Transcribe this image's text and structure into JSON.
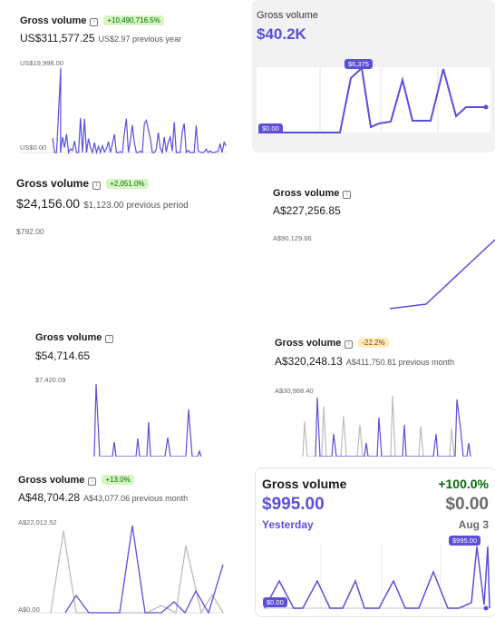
{
  "colors": {
    "series": "#5b4fd9",
    "comparison": "#bdbdbd",
    "gray_bg": "#f2f2f3",
    "green": "#05690d"
  },
  "icons": {
    "info": "info-icon"
  },
  "cards": {
    "c1": {
      "title": "Gross volume",
      "badge": "+10,490,716.5%",
      "amount": "US$311,577.25",
      "prev": "US$2.97 previous year",
      "ymax": "US$19,998.00",
      "ymin": "US$0.00"
    },
    "c2": {
      "title": "Gross volume",
      "amount": "$40.2K",
      "peak": "$6,375",
      "zero": "$0.00"
    },
    "c3": {
      "title": "Gross volume",
      "badge": "+2,051.0%",
      "amount": "$24,156.00",
      "prev": "$1,123.00 previous period",
      "ymax": "$792.00"
    },
    "c4": {
      "title": "Gross volume",
      "amount": "A$227,256.85",
      "ymax": "A$90,129.66"
    },
    "c5": {
      "title": "Gross volume",
      "amount": "$54,714.65",
      "ymax": "$7,420.09"
    },
    "c6": {
      "title": "Gross volume",
      "badge": "-22.2%",
      "amount": "A$320,248.13",
      "prev": "A$411,750.81 previous month",
      "ymax": "A$30,968.40"
    },
    "c7": {
      "title": "Gross volume",
      "badge": "+13.0%",
      "amount": "A$48,704.28",
      "prev": "A$43,077.06 previous month",
      "ymax": "A$22,012.52",
      "ymin": "A$0.00"
    },
    "c8": {
      "title": "Gross volume",
      "change": "+100.0%",
      "amount": "$995.00",
      "compare_amount": "$0.00",
      "period": "Yesterday",
      "compare_period": "Aug 3",
      "peak": "$995.00",
      "zero": "$0.00"
    }
  }
}
